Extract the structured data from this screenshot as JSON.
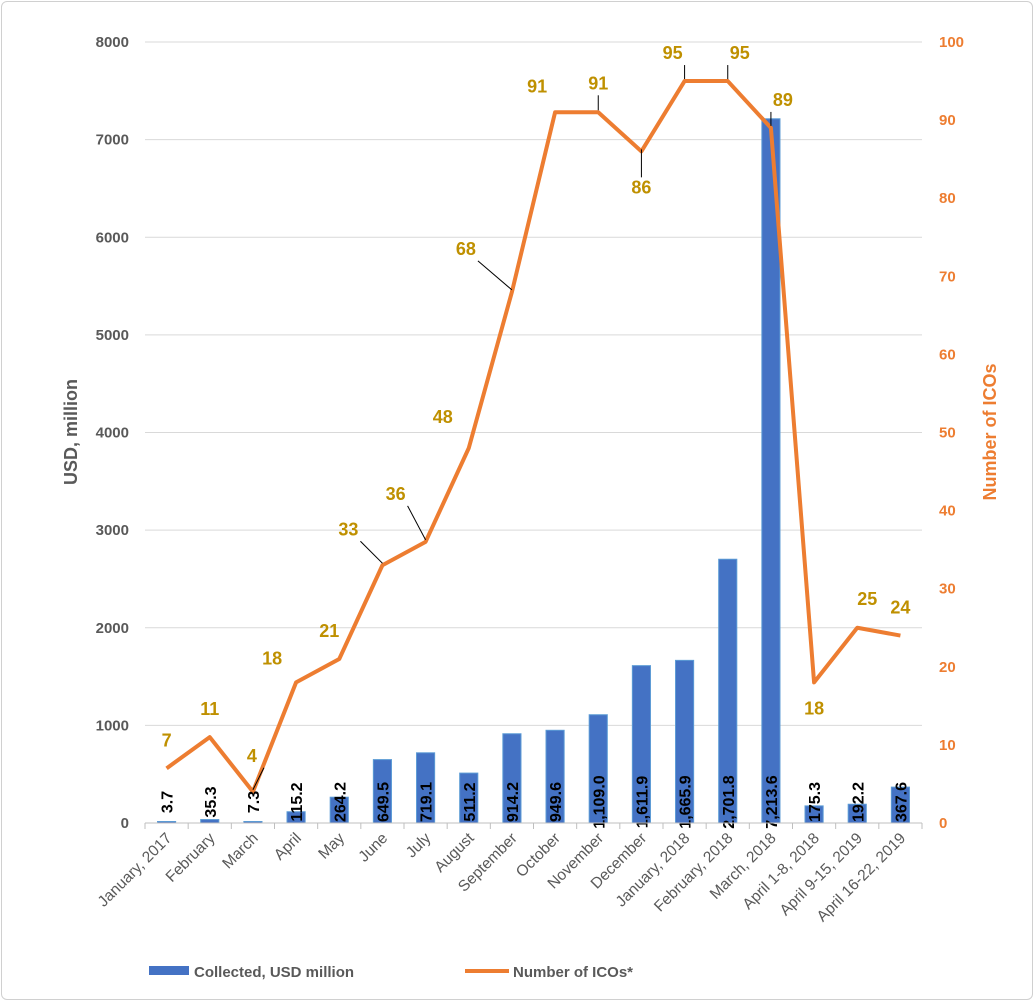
{
  "chart_data": {
    "type": "bar",
    "categories": [
      "January, 2017",
      "February",
      "March",
      "April",
      "May",
      "June",
      "July",
      "August",
      "September",
      "October",
      "November",
      "December",
      "January, 2018",
      "February, 2018",
      "March, 2018",
      "April 1-8, 2018",
      "April 9-15, 2019",
      "April 16-22, 2019"
    ],
    "series": [
      {
        "name": "Collected, USD million",
        "type": "bar",
        "axis": "left",
        "color": "#4472C4",
        "values": [
          3.7,
          35.3,
          7.3,
          115.2,
          264.2,
          649.5,
          719.1,
          511.2,
          914.2,
          949.6,
          1109.0,
          1611.9,
          1665.9,
          2701.8,
          7213.6,
          175.3,
          192.2,
          367.6
        ],
        "labels": [
          "3.7",
          "35.3",
          "7.3",
          "115.2",
          "264.2",
          "649.5",
          "719.1",
          "511.2",
          "914.2",
          "949.6",
          "1,109.0",
          "1,611.9",
          "1,665.9",
          "2,701.8",
          "7,213.6",
          "175.3",
          "192.2",
          "367.6"
        ]
      },
      {
        "name": "Number of ICOs*",
        "type": "line",
        "axis": "right",
        "color": "#ED7D31",
        "values": [
          7,
          11,
          4,
          18,
          21,
          33,
          36,
          48,
          68,
          91,
          91,
          86,
          95,
          95,
          89,
          18,
          25,
          24
        ],
        "labels": [
          "7",
          "11",
          "4",
          "18",
          "21",
          "33",
          "36",
          "48",
          "68",
          "91",
          "91",
          "86",
          "95",
          "95",
          "89",
          "18",
          "25",
          "24"
        ]
      }
    ],
    "ylabel": "USD, million",
    "ylabel_right": "Number of ICOs",
    "ylim": [
      0,
      8000
    ],
    "ylim_right": [
      0,
      100
    ],
    "yticks": [
      "0",
      "1000",
      "2000",
      "3000",
      "4000",
      "5000",
      "6000",
      "7000",
      "8000"
    ],
    "yticks_right": [
      "0",
      "10",
      "20",
      "30",
      "40",
      "50",
      "60",
      "70",
      "80",
      "90",
      "100"
    ],
    "grid": true,
    "legend_position": "bottom",
    "label_color": "#BF9000"
  }
}
